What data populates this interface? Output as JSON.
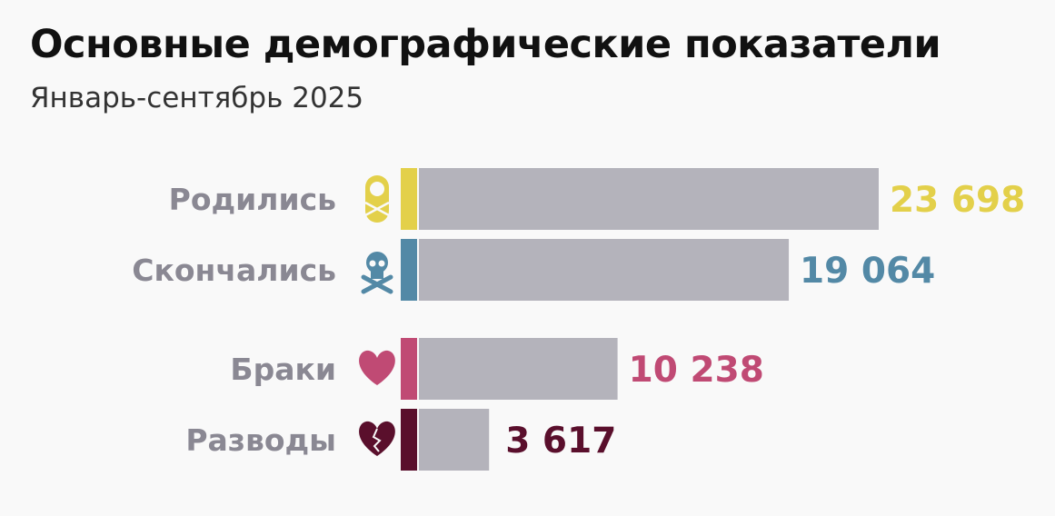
{
  "title": "Основные демографические показатели",
  "subtitle": "Январь-сентябрь 2025",
  "chart_data": {
    "type": "bar",
    "orientation": "horizontal",
    "title": "Основные демографические показатели",
    "subtitle": "Январь-сентябрь 2025",
    "categories": [
      "Родились",
      "Скончались",
      "Браки",
      "Разводы"
    ],
    "values": [
      23698,
      19064,
      10238,
      3617
    ],
    "value_labels": [
      "23 698",
      "19 064",
      "10 238",
      "3 617"
    ],
    "icons": [
      "baby-icon",
      "skull-crossbones-icon",
      "heart-icon",
      "broken-heart-icon"
    ],
    "colors": [
      "#e3d04a",
      "#5389a6",
      "#c04a74",
      "#5a0f2c"
    ],
    "bar_color": "#b4b3bb",
    "xlim": [
      0,
      23698
    ]
  }
}
